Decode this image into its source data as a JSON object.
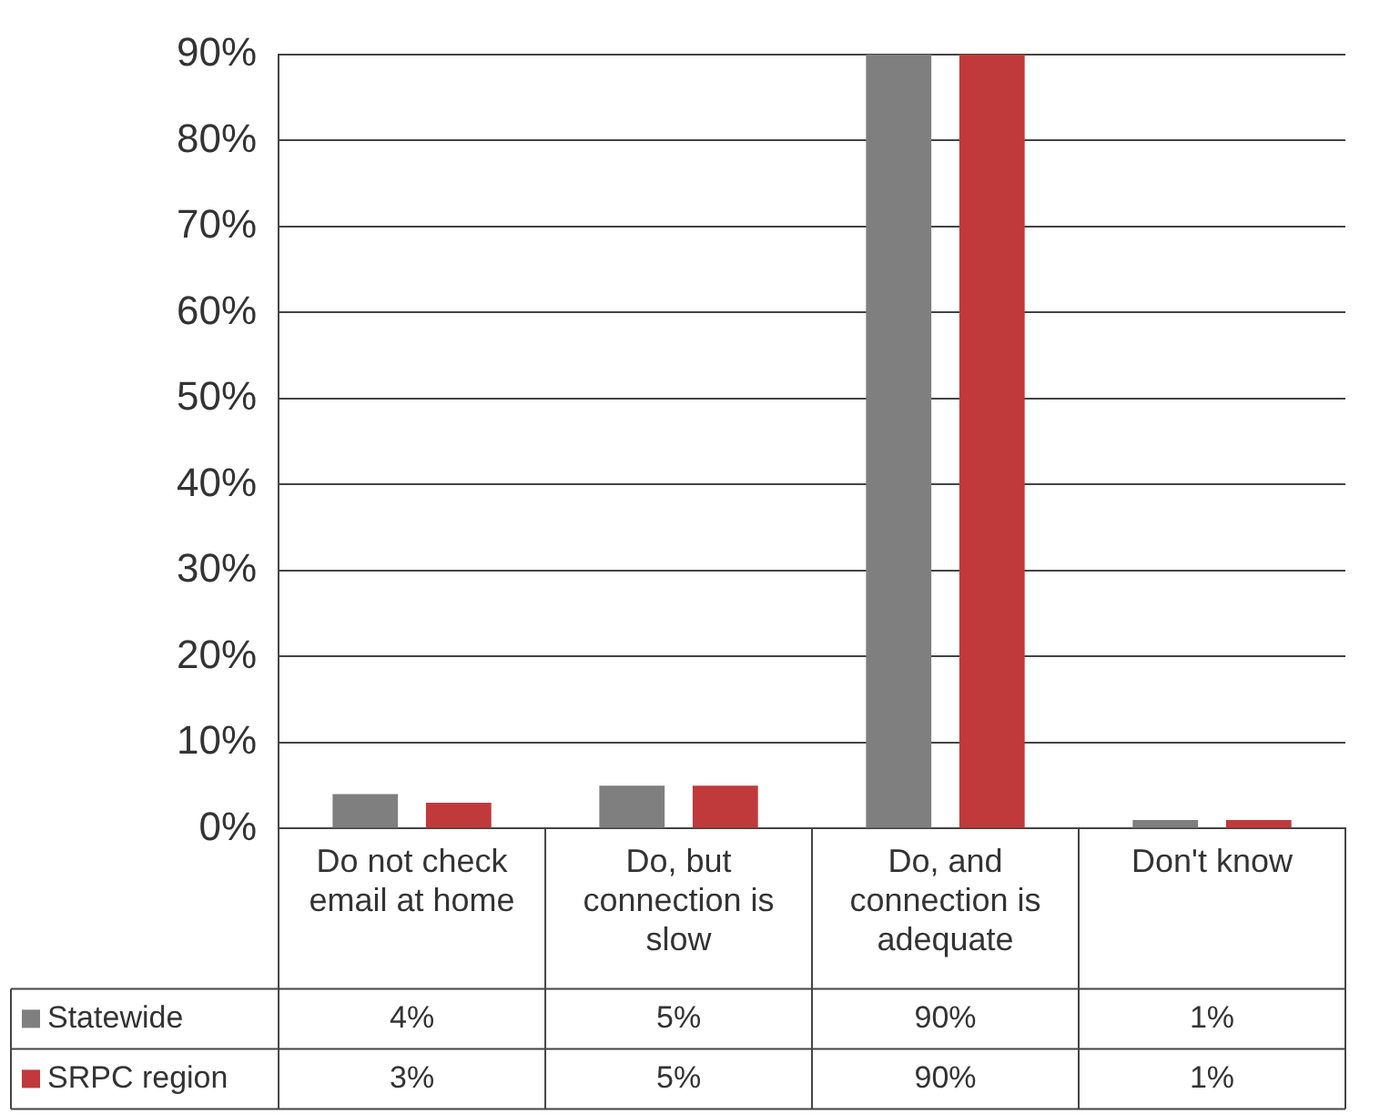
{
  "chart_data": {
    "type": "bar",
    "categories": [
      "Do not check email at home",
      "Do, but connection is slow",
      "Do, and connection is adequate",
      "Don't know"
    ],
    "series": [
      {
        "name": "Statewide",
        "color": "#7f7f7f",
        "values": [
          4,
          5,
          90,
          1
        ],
        "value_labels": [
          "4%",
          "5%",
          "90%",
          "1%"
        ]
      },
      {
        "name": "SRPC region",
        "color": "#c0393b",
        "values": [
          3,
          5,
          90,
          1
        ],
        "value_labels": [
          "3%",
          "5%",
          "90%",
          "1%"
        ]
      }
    ],
    "ylim": [
      0,
      90
    ],
    "yticks": [
      {
        "value": 0,
        "label": "0%"
      },
      {
        "value": 10,
        "label": "10%"
      },
      {
        "value": 20,
        "label": "20%"
      },
      {
        "value": 30,
        "label": "30%"
      },
      {
        "value": 40,
        "label": "40%"
      },
      {
        "value": 50,
        "label": "50%"
      },
      {
        "value": 60,
        "label": "60%"
      },
      {
        "value": 70,
        "label": "70%"
      },
      {
        "value": 80,
        "label": "80%"
      },
      {
        "value": 90,
        "label": "90%"
      }
    ],
    "grid": "y",
    "legend": "bottom"
  }
}
